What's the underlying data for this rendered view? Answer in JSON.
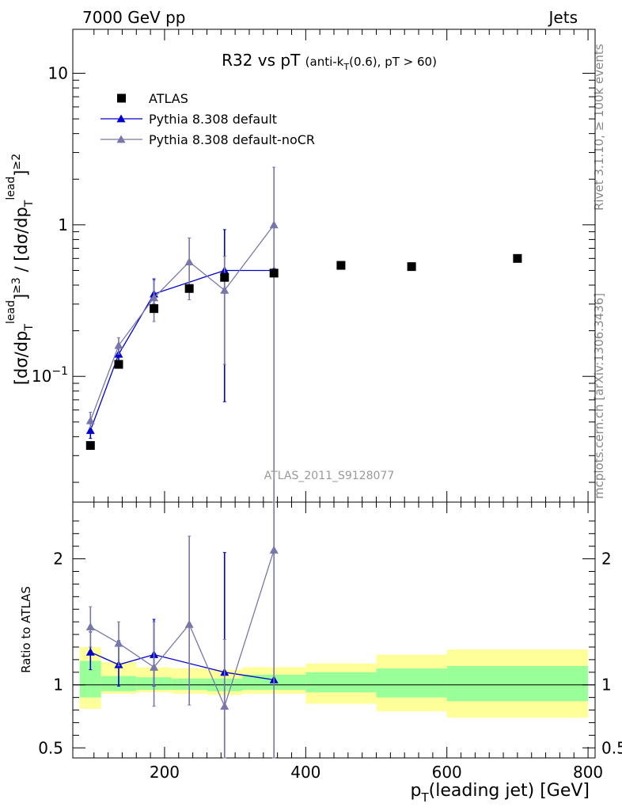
{
  "header": {
    "left": "7000 GeV pp",
    "right": "Jets"
  },
  "side_labels": {
    "rivet": "Rivet 3.1.10, ≥ 100k events",
    "mcplots": "mcplots.cern.ch [arXiv:1306.3436]"
  },
  "chart_data": {
    "type": "scatter",
    "title_main": "R32 vs pT",
    "title_detail": "(anti-k_T(0.6), pT > 60)",
    "watermark": "ATLAS_2011_S9128077",
    "xlabel": "p_T(leading jet) [GeV]",
    "ylabel": "[dσ/dp_T^lead]^≥3 / [dσ/dp_T^lead]^≥2",
    "ratio_ylabel": "Ratio to ATLAS",
    "x_range": [
      70,
      810
    ],
    "y_range": [
      0.0148,
      19.5
    ],
    "y_scale": "log",
    "ratio_range": [
      0.42,
      2.45
    ],
    "x_ticks": [
      200,
      400,
      600,
      800
    ],
    "y_ticks": [
      {
        "value": 0.1,
        "label": "10^−1"
      },
      {
        "value": 1,
        "label": "1"
      },
      {
        "value": 10,
        "label": "10"
      }
    ],
    "ratio_ticks": [
      {
        "value": 0.5,
        "label": "0.5"
      },
      {
        "value": 1,
        "label": "1"
      },
      {
        "value": 2,
        "label": "2"
      }
    ],
    "legend": {
      "position": "top-left"
    },
    "series": [
      {
        "name": "ATLAS",
        "style": "data",
        "color": "#000000",
        "x": [
          95,
          135,
          185,
          235,
          285,
          355,
          450,
          550,
          700
        ],
        "y": [
          0.035,
          0.12,
          0.28,
          0.38,
          0.45,
          0.48,
          0.54,
          0.53,
          0.6
        ],
        "bins": [
          [
            80,
            110
          ],
          [
            110,
            160
          ],
          [
            160,
            210
          ],
          [
            210,
            260
          ],
          [
            260,
            310
          ],
          [
            310,
            400
          ],
          [
            400,
            500
          ],
          [
            500,
            600
          ],
          [
            600,
            800
          ]
        ],
        "ratio_band_stat": [
          [
            0.9,
            1.19
          ],
          [
            0.95,
            1.07
          ],
          [
            0.96,
            1.06
          ],
          [
            0.96,
            1.05
          ],
          [
            0.95,
            1.05
          ],
          [
            0.96,
            1.08
          ],
          [
            0.94,
            1.1
          ],
          [
            0.9,
            1.13
          ],
          [
            0.87,
            1.15
          ]
        ],
        "ratio_band_total": [
          [
            0.81,
            1.3
          ],
          [
            0.93,
            1.18
          ],
          [
            0.94,
            1.14
          ],
          [
            0.93,
            1.13
          ],
          [
            0.92,
            1.12
          ],
          [
            0.93,
            1.14
          ],
          [
            0.85,
            1.17
          ],
          [
            0.79,
            1.24
          ],
          [
            0.74,
            1.28
          ]
        ]
      },
      {
        "name": "Pythia 8.308 default",
        "style": "line-triangle",
        "color": "#0000cc",
        "x": [
          95,
          135,
          185,
          285,
          355
        ],
        "y": [
          0.044,
          0.14,
          0.35,
          0.5,
          0.5
        ],
        "y_err": [
          [
            0.039,
            0.05
          ],
          [
            0.12,
            0.16
          ],
          [
            0.3,
            0.44
          ],
          [
            0.068,
            0.93
          ],
          [
            0.5,
            0.5
          ]
        ],
        "ratio": [
          1.26,
          1.16,
          1.24,
          1.1,
          1.04
        ],
        "ratio_err": [
          [
            1.12,
            1.42
          ],
          [
            0.99,
            1.35
          ],
          [
            0.99,
            1.52
          ],
          [
            0.42,
            2.05
          ],
          [
            1.04,
            1.04
          ]
        ]
      },
      {
        "name": "Pythia 8.308 default-noCR",
        "style": "line-triangle",
        "color": "#7777aa",
        "x": [
          95,
          135,
          185,
          235,
          285,
          355
        ],
        "y": [
          0.051,
          0.16,
          0.33,
          0.57,
          0.37,
          1.0
        ],
        "y_err": [
          [
            0.046,
            0.058
          ],
          [
            0.14,
            0.18
          ],
          [
            0.23,
            0.43
          ],
          [
            0.32,
            0.82
          ],
          [
            0.12,
            0.62
          ],
          [
            0.0148,
            2.4
          ]
        ],
        "ratio": [
          1.46,
          1.33,
          1.14,
          1.48,
          0.83,
          2.07
        ],
        "ratio_err": [
          [
            1.3,
            1.62
          ],
          [
            1.15,
            1.5
          ],
          [
            0.83,
            1.5
          ],
          [
            0.84,
            2.18
          ],
          [
            0.42,
            1.36
          ],
          [
            0.42,
            2.45
          ]
        ]
      }
    ]
  }
}
